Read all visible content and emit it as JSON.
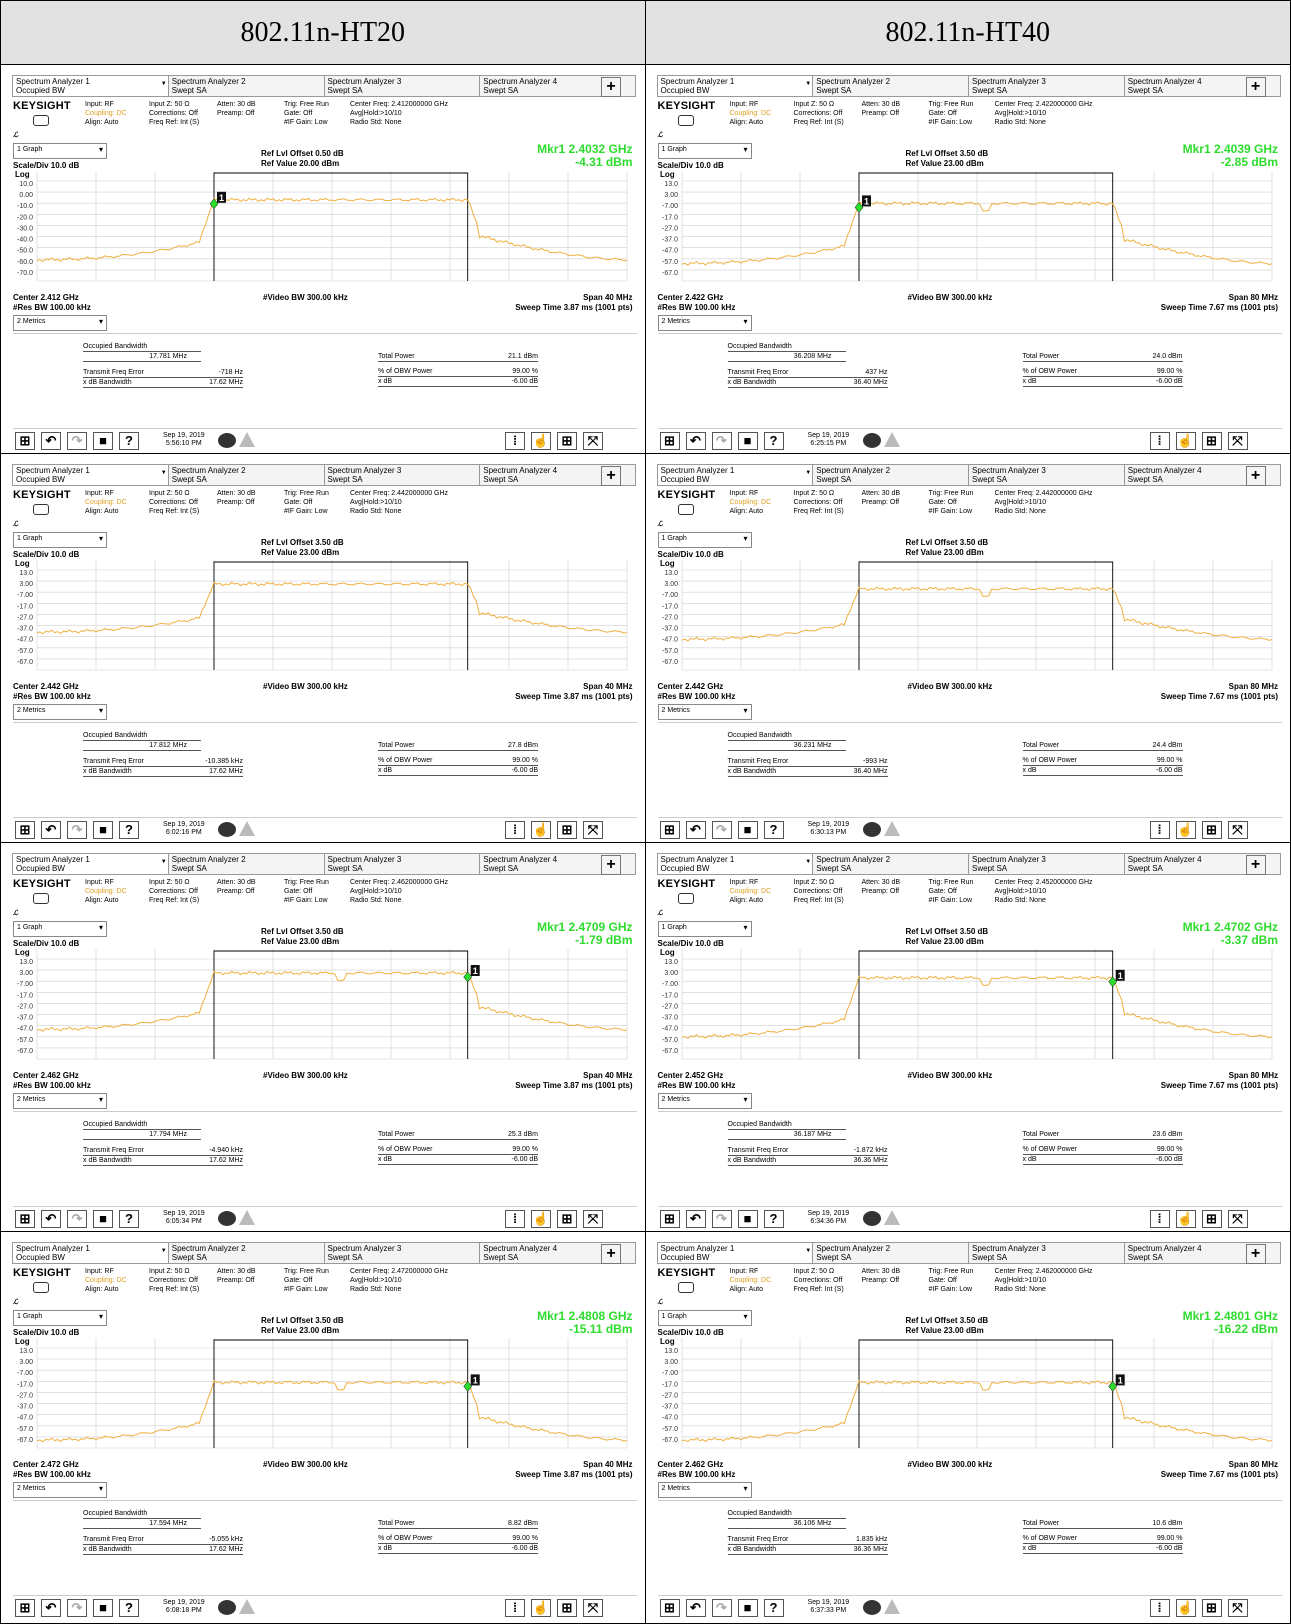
{
  "headers": [
    "802.11n-HT20",
    "802.11n-HT40"
  ],
  "shared": {
    "tabs": [
      {
        "line1": "Spectrum Analyzer 1",
        "line2": "Occupied BW"
      },
      {
        "line1": "Spectrum Analyzer 2",
        "line2": "Swept SA"
      },
      {
        "line1": "Spectrum Analyzer 3",
        "line2": "Swept SA"
      },
      {
        "line1": "Spectrum Analyzer 4",
        "line2": "Swept SA"
      }
    ],
    "plus": "+",
    "brand": "KEYSIGHT",
    "input": [
      "Input: RF",
      "Coupling: DC",
      "Align: Auto"
    ],
    "inputz": [
      "Input Z: 50 Ω",
      "Corrections: Off",
      "Freq Ref: Int (S)"
    ],
    "atten": [
      "Atten: 30 dB",
      "Preamp: Off"
    ],
    "trig": [
      "Trig: Free Run",
      "Gate: Off",
      "#IF Gain: Low"
    ],
    "avg": "Avg|Hold:>10/10",
    "radio": "Radio Std: None",
    "graph": "1 Graph",
    "scale": "Scale/Div 10.0 dB",
    "log": "Log",
    "vbw": "#Video BW 300.00 kHz",
    "rbw": "#Res BW 100.00 kHz",
    "metrics_sel": "2 Metrics",
    "occ_label": "Occupied Bandwidth",
    "tfe_label": "Transmit Freq Error",
    "xdb_label": "x dB Bandwidth",
    "tp_label": "Total Power",
    "obw_label": "% of OBW Power",
    "xdb2_label": "x dB",
    "obw_val": "99.00 %",
    "xdb_val": "-6.00 dB",
    "date": "Sep 19, 2019",
    "cursor_icon": "xi-icon"
  },
  "panels": [
    {
      "center_freq": "Center Freq: 2.412000000 GHz",
      "ref_offset": "Ref Lvl Offset 0.50 dB",
      "ref_value": "Ref Value 20.00 dBm",
      "mkr_freq": "Mkr1  2.4032 GHz",
      "mkr_level": "-4.31 dBm",
      "yticks": [
        "10.0",
        "0.00",
        "-10.0",
        "-20.0",
        "-30.0",
        "-40.0",
        "-50.0",
        "-60.0",
        "-70.0"
      ],
      "center": "Center 2.412 GHz",
      "span": "Span 40 MHz",
      "sweep": "Sweep Time 3.87 ms (1001 pts)",
      "occ": "17.781 MHz",
      "tfe": "-718 Hz",
      "xdb": "17.62 MHz",
      "tp": "21.1 dBm",
      "time": "5:56:10 PM",
      "trace": {
        "floor": 0.74,
        "top": 0.24,
        "left": 0.3,
        "right": 0.73,
        "notch": false,
        "marker": "left"
      }
    },
    {
      "center_freq": "Center Freq: 2.422000000 GHz",
      "ref_offset": "Ref Lvl Offset 3.50 dB",
      "ref_value": "Ref Value 23.00 dBm",
      "mkr_freq": "Mkr1  2.4039 GHz",
      "mkr_level": "-2.85 dBm",
      "yticks": [
        "13.0",
        "3.00",
        "-7.00",
        "-17.0",
        "-27.0",
        "-37.0",
        "-47.0",
        "-57.0",
        "-67.0"
      ],
      "center": "Center 2.422 GHz",
      "span": "Span 80 MHz",
      "sweep": "Sweep Time 7.67 ms (1001 pts)",
      "occ": "36.208 MHz",
      "tfe": "437 Hz",
      "xdb": "36.40 MHz",
      "tp": "24.0 dBm",
      "time": "6:25:15 PM",
      "trace": {
        "floor": 0.77,
        "top": 0.27,
        "left": 0.3,
        "right": 0.73,
        "notch": true,
        "marker": "left"
      }
    },
    {
      "center_freq": "Center Freq: 2.442000000 GHz",
      "ref_offset": "Ref Lvl Offset 3.50 dB",
      "ref_value": "Ref Value 23.00 dBm",
      "mkr_freq": "",
      "mkr_level": "",
      "yticks": [
        "13.0",
        "3.00",
        "-7.00",
        "-17.0",
        "-27.0",
        "-37.0",
        "-47.0",
        "-57.0",
        "-67.0"
      ],
      "center": "Center 2.442 GHz",
      "span": "Span 40 MHz",
      "sweep": "Sweep Time 3.87 ms (1001 pts)",
      "occ": "17.812 MHz",
      "tfe": "-10.385 kHz",
      "xdb": "17.62 MHz",
      "tp": "27.8 dBm",
      "time": "6:02:16 PM",
      "trace": {
        "floor": 0.6,
        "top": 0.2,
        "left": 0.3,
        "right": 0.73,
        "notch": false,
        "marker": "none"
      }
    },
    {
      "center_freq": "Center Freq: 2.442000000 GHz",
      "ref_offset": "Ref Lvl Offset 3.50 dB",
      "ref_value": "Ref Value 23.00 dBm",
      "mkr_freq": "",
      "mkr_level": "",
      "yticks": [
        "13.0",
        "3.00",
        "-7.00",
        "-17.0",
        "-27.0",
        "-37.0",
        "-47.0",
        "-57.0",
        "-67.0"
      ],
      "center": "Center 2.442 GHz",
      "span": "Span 80 MHz",
      "sweep": "Sweep Time 7.67 ms (1001 pts)",
      "occ": "36.231 MHz",
      "tfe": "-993 Hz",
      "xdb": "36.40 MHz",
      "tp": "24.4 dBm",
      "time": "6:30:13 PM",
      "trace": {
        "floor": 0.66,
        "top": 0.24,
        "left": 0.3,
        "right": 0.73,
        "notch": true,
        "marker": "none"
      }
    },
    {
      "center_freq": "Center Freq: 2.462000000 GHz",
      "ref_offset": "Ref Lvl Offset 3.50 dB",
      "ref_value": "Ref Value 23.00 dBm",
      "mkr_freq": "Mkr1  2.4709 GHz",
      "mkr_level": "-1.79 dBm",
      "yticks": [
        "13.0",
        "3.00",
        "-7.00",
        "-17.0",
        "-27.0",
        "-37.0",
        "-47.0",
        "-57.0",
        "-67.0"
      ],
      "center": "Center 2.462 GHz",
      "span": "Span 40 MHz",
      "sweep": "Sweep Time 3.87 ms (1001 pts)",
      "occ": "17.794 MHz",
      "tfe": "-4.940 kHz",
      "xdb": "17.62 MHz",
      "tp": "25.3 dBm",
      "time": "6:05:34 PM",
      "trace": {
        "floor": 0.67,
        "top": 0.2,
        "left": 0.3,
        "right": 0.73,
        "notch": true,
        "marker": "right"
      }
    },
    {
      "center_freq": "Center Freq: 2.452000000 GHz",
      "ref_offset": "Ref Lvl Offset 3.50 dB",
      "ref_value": "Ref Value 23.00 dBm",
      "mkr_freq": "Mkr1  2.4702 GHz",
      "mkr_level": "-3.37 dBm",
      "yticks": [
        "13.0",
        "3.00",
        "-7.00",
        "-17.0",
        "-27.0",
        "-37.0",
        "-47.0",
        "-57.0",
        "-67.0"
      ],
      "center": "Center 2.452 GHz",
      "span": "Span 80 MHz",
      "sweep": "Sweep Time 7.67 ms (1001 pts)",
      "occ": "36.187 MHz",
      "tfe": "-1.872 kHz",
      "xdb": "36.36 MHz",
      "tp": "23.6 dBm",
      "time": "6:34:36 PM",
      "trace": {
        "floor": 0.73,
        "top": 0.24,
        "left": 0.3,
        "right": 0.73,
        "notch": true,
        "marker": "right"
      }
    },
    {
      "center_freq": "Center Freq: 2.472000000 GHz",
      "ref_offset": "Ref Lvl Offset 3.50 dB",
      "ref_value": "Ref Value 23.00 dBm",
      "mkr_freq": "Mkr1  2.4808 GHz",
      "mkr_level": "-15.11 dBm",
      "yticks": [
        "13.0",
        "3.00",
        "-7.00",
        "-17.0",
        "-27.0",
        "-37.0",
        "-47.0",
        "-57.0",
        "-67.0"
      ],
      "center": "Center 2.472 GHz",
      "span": "Span 40 MHz",
      "sweep": "Sweep Time 3.87 ms (1001 pts)",
      "occ": "17.594 MHz",
      "tfe": "-5.055 kHz",
      "xdb": "17.62 MHz",
      "tp": "8.82 dBm",
      "time": "6:08:18 PM",
      "trace": {
        "floor": 0.85,
        "top": 0.37,
        "left": 0.3,
        "right": 0.73,
        "notch": true,
        "marker": "right"
      }
    },
    {
      "center_freq": "Center Freq: 2.462000000 GHz",
      "ref_offset": "Ref Lvl Offset 3.50 dB",
      "ref_value": "Ref Value 23.00 dBm",
      "mkr_freq": "Mkr1  2.4801 GHz",
      "mkr_level": "-16.22 dBm",
      "yticks": [
        "13.0",
        "3.00",
        "-7.00",
        "-17.0",
        "-27.0",
        "-37.0",
        "-47.0",
        "-57.0",
        "-67.0"
      ],
      "center": "Center 2.462 GHz",
      "span": "Span 80 MHz",
      "sweep": "Sweep Time 7.67 ms (1001 pts)",
      "occ": "36.106 MHz",
      "tfe": "1.835 kHz",
      "xdb": "36.36 MHz",
      "tp": "10.6 dBm",
      "time": "6:37:33 PM",
      "trace": {
        "floor": 0.85,
        "top": 0.37,
        "left": 0.3,
        "right": 0.73,
        "notch": true,
        "marker": "right"
      }
    }
  ]
}
